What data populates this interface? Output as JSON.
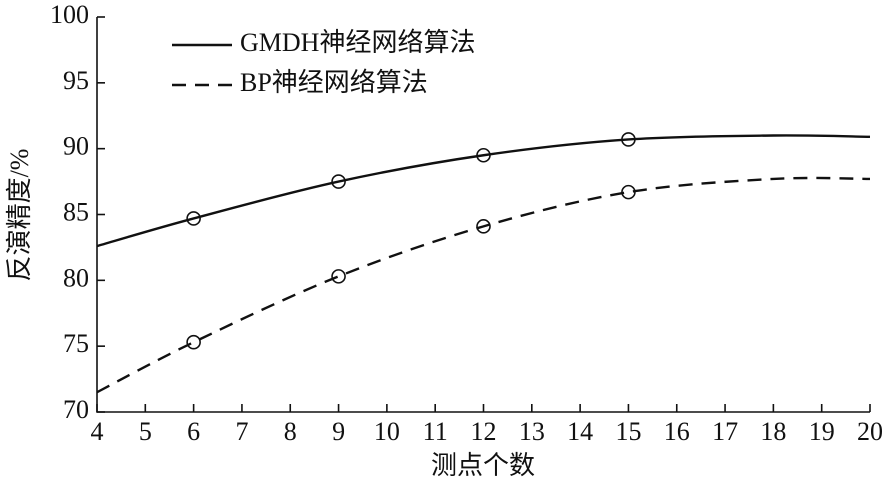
{
  "chart_data": {
    "type": "line",
    "x_label": "测点个数",
    "y_label": "反演精度/%",
    "xlim": [
      4,
      20
    ],
    "xticks": [
      4,
      5,
      6,
      7,
      8,
      9,
      10,
      11,
      12,
      13,
      14,
      15,
      16,
      17,
      18,
      19,
      20
    ],
    "ylim": [
      70,
      100
    ],
    "yticks": [
      70,
      75,
      80,
      85,
      90,
      95,
      100
    ],
    "legend": "upper left",
    "smooth": true,
    "series": [
      {
        "name": "GMDH神经网络算法",
        "color": "#111111",
        "dash": "solid",
        "x": [
          4,
          6,
          9,
          12,
          15,
          18,
          20
        ],
        "values": [
          82.6,
          84.7,
          87.5,
          89.5,
          90.7,
          91.0,
          90.9
        ],
        "points": {
          "x": [
            6,
            9,
            12,
            15
          ],
          "values": [
            84.7,
            87.5,
            89.5,
            90.7
          ]
        }
      },
      {
        "name": "BP神经网络算法",
        "color": "#111111",
        "dash": "dashed",
        "x": [
          4,
          6,
          9,
          12,
          15,
          18,
          20
        ],
        "values": [
          71.5,
          75.3,
          80.3,
          84.1,
          86.7,
          87.7,
          87.7
        ],
        "points": {
          "x": [
            6,
            9,
            12,
            15
          ],
          "values": [
            75.3,
            80.3,
            84.1,
            86.7
          ]
        }
      }
    ]
  }
}
